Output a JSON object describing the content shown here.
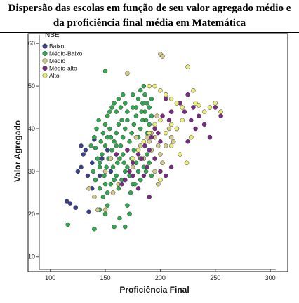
{
  "header": {
    "title_line1": "Dispersão das escolas em função de seu valor agregado médio e",
    "title_line2": "da proficiência final média em Matemática"
  },
  "chart_data": {
    "type": "scatter",
    "title": "Dispersão das escolas em função de seu valor agregado médio e da proficiência final média em Matemática",
    "xlabel": "Proficiência Final",
    "ylabel": "Valor Agregado",
    "xlim": [
      90,
      305
    ],
    "ylim": [
      7,
      62
    ],
    "xticks": [
      100,
      150,
      200,
      250,
      300
    ],
    "yticks": [
      10,
      20,
      30,
      40,
      50,
      60
    ],
    "grid": false,
    "legend": {
      "title": "NSE",
      "position": "top-left"
    },
    "series": [
      {
        "name": "Baixo",
        "color": "#3b3f8f",
        "points": [
          [
            115,
            23
          ],
          [
            118,
            22.5
          ],
          [
            123,
            21.5
          ],
          [
            125,
            30
          ],
          [
            128,
            31
          ],
          [
            130,
            34
          ],
          [
            132,
            35
          ],
          [
            128,
            36
          ],
          [
            135,
            20.5
          ],
          [
            138,
            32
          ],
          [
            140,
            37.5
          ],
          [
            145,
            29
          ],
          [
            147,
            33
          ],
          [
            152,
            35
          ],
          [
            155,
            30
          ],
          [
            134,
            29
          ],
          [
            138,
            26
          ]
        ]
      },
      {
        "name": "Médio-Baixo",
        "color": "#2fa84f",
        "points": [
          [
            116,
            17.5
          ],
          [
            140,
            16.5
          ],
          [
            150,
            20
          ],
          [
            152,
            22
          ],
          [
            158,
            17
          ],
          [
            163,
            19
          ],
          [
            168,
            17
          ],
          [
            170,
            22
          ],
          [
            172,
            20
          ],
          [
            150,
            53.5
          ],
          [
            145,
            21
          ],
          [
            148,
            24
          ],
          [
            152,
            25
          ],
          [
            155,
            27
          ],
          [
            158,
            28
          ],
          [
            160,
            29
          ],
          [
            162,
            26
          ],
          [
            165,
            28
          ],
          [
            168,
            30
          ],
          [
            170,
            31
          ],
          [
            172,
            29
          ],
          [
            175,
            27
          ],
          [
            178,
            32
          ],
          [
            180,
            30
          ],
          [
            182,
            33
          ],
          [
            185,
            31
          ],
          [
            188,
            34
          ],
          [
            190,
            32
          ],
          [
            145,
            32
          ],
          [
            147,
            34
          ],
          [
            150,
            36
          ],
          [
            152,
            38
          ],
          [
            154,
            40
          ],
          [
            156,
            35
          ],
          [
            158,
            37
          ],
          [
            160,
            39
          ],
          [
            162,
            41
          ],
          [
            164,
            36
          ],
          [
            166,
            38
          ],
          [
            168,
            40
          ],
          [
            170,
            42
          ],
          [
            172,
            37
          ],
          [
            174,
            39
          ],
          [
            176,
            41
          ],
          [
            178,
            43
          ],
          [
            180,
            38
          ],
          [
            182,
            40
          ],
          [
            184,
            42
          ],
          [
            186,
            44
          ],
          [
            188,
            39
          ],
          [
            190,
            41
          ],
          [
            192,
            43
          ],
          [
            140,
            38
          ],
          [
            142,
            40
          ],
          [
            144,
            42
          ],
          [
            146,
            37
          ],
          [
            148,
            39
          ],
          [
            150,
            41
          ],
          [
            152,
            43
          ],
          [
            154,
            44
          ],
          [
            156,
            45
          ],
          [
            158,
            46
          ],
          [
            160,
            44
          ],
          [
            162,
            47
          ],
          [
            164,
            45
          ],
          [
            166,
            48
          ],
          [
            168,
            46
          ],
          [
            175,
            48
          ],
          [
            178,
            45
          ],
          [
            180,
            47
          ],
          [
            182,
            49
          ],
          [
            184,
            46
          ],
          [
            186,
            48
          ],
          [
            188,
            46
          ],
          [
            190,
            45
          ],
          [
            192,
            47
          ],
          [
            185,
            50
          ],
          [
            160,
            36
          ],
          [
            163,
            33
          ],
          [
            166,
            34
          ],
          [
            170,
            35
          ],
          [
            174,
            33
          ],
          [
            176,
            35
          ],
          [
            141,
            35.5
          ],
          [
            143,
            33
          ],
          [
            145,
            31
          ],
          [
            149,
            29
          ],
          [
            151,
            31
          ],
          [
            153,
            33
          ],
          [
            157,
            31
          ],
          [
            161,
            32
          ],
          [
            167,
            32
          ],
          [
            173,
            25
          ],
          [
            177,
            27
          ],
          [
            182,
            28
          ],
          [
            187,
            30
          ],
          [
            192,
            29
          ],
          [
            139,
            30
          ],
          [
            141,
            28
          ],
          [
            137,
            36
          ],
          [
            145,
            26
          ],
          [
            150,
            27
          ],
          [
            155,
            38
          ],
          [
            160,
            34
          ],
          [
            165,
            42
          ],
          [
            170,
            44
          ],
          [
            175,
            45
          ],
          [
            183,
            44
          ],
          [
            187,
            42
          ]
        ]
      },
      {
        "name": "Médio",
        "color": "#d2c98a",
        "points": [
          [
            135,
            26
          ],
          [
            140,
            24
          ],
          [
            143,
            21
          ],
          [
            150,
            21
          ],
          [
            157,
            25
          ],
          [
            162,
            27
          ],
          [
            170,
            53
          ],
          [
            175,
            31
          ],
          [
            180,
            35
          ],
          [
            185,
            33
          ],
          [
            190,
            37
          ],
          [
            192,
            35
          ],
          [
            195,
            38
          ],
          [
            198,
            36
          ],
          [
            200,
            34
          ],
          [
            202,
            32
          ],
          [
            205,
            36
          ],
          [
            208,
            40
          ],
          [
            210,
            38
          ],
          [
            200,
            57.5
          ],
          [
            202,
            57
          ],
          [
            205,
            48
          ],
          [
            210,
            44
          ],
          [
            195,
            30
          ],
          [
            198,
            27
          ],
          [
            178,
            38
          ],
          [
            182,
            36
          ],
          [
            188,
            38
          ],
          [
            150,
            30
          ],
          [
            155,
            33
          ],
          [
            192,
            39
          ],
          [
            197,
            43
          ],
          [
            212,
            37
          ]
        ]
      },
      {
        "name": "Médio-alto",
        "color": "#7a2a86",
        "points": [
          [
            165,
            27
          ],
          [
            168,
            28
          ],
          [
            172,
            30
          ],
          [
            175,
            32
          ],
          [
            180,
            34
          ],
          [
            183,
            33
          ],
          [
            186,
            36
          ],
          [
            188,
            31
          ],
          [
            190,
            35
          ],
          [
            192,
            38
          ],
          [
            195,
            40
          ],
          [
            198,
            39
          ],
          [
            200,
            37
          ],
          [
            202,
            43
          ],
          [
            205,
            47
          ],
          [
            208,
            42
          ],
          [
            210,
            44
          ],
          [
            215,
            40
          ],
          [
            218,
            46
          ],
          [
            222,
            44
          ],
          [
            225,
            48
          ],
          [
            228,
            42
          ],
          [
            230,
            45
          ],
          [
            232,
            40
          ],
          [
            235,
            43
          ],
          [
            240,
            41
          ],
          [
            245,
            38
          ],
          [
            250,
            45
          ],
          [
            255,
            43
          ],
          [
            175,
            29
          ],
          [
            185,
            29
          ],
          [
            195,
            33
          ],
          [
            225,
            37
          ],
          [
            210,
            31
          ],
          [
            205,
            29
          ],
          [
            190,
            24
          ],
          [
            180,
            26
          ],
          [
            170,
            35
          ],
          [
            160,
            34
          ],
          [
            200,
            30
          ]
        ]
      },
      {
        "name": "Alto",
        "color": "#ecec78",
        "points": [
          [
            190,
            50
          ],
          [
            195,
            50
          ],
          [
            200,
            49
          ],
          [
            205,
            48
          ],
          [
            210,
            47
          ],
          [
            215,
            46
          ],
          [
            220,
            45
          ],
          [
            225,
            54.5
          ],
          [
            230,
            49
          ],
          [
            232,
            46
          ],
          [
            235,
            45.5
          ],
          [
            240,
            44
          ],
          [
            245,
            45
          ],
          [
            250,
            46
          ],
          [
            255,
            44
          ],
          [
            220,
            42
          ],
          [
            215,
            40
          ],
          [
            210,
            41
          ],
          [
            205,
            39
          ],
          [
            200,
            42
          ],
          [
            195,
            41
          ],
          [
            190,
            39
          ],
          [
            185,
            37
          ],
          [
            180,
            35
          ],
          [
            175,
            33
          ],
          [
            200,
            28
          ],
          [
            210,
            36
          ],
          [
            218,
            34
          ],
          [
            224,
            32
          ],
          [
            228,
            38
          ]
        ]
      }
    ]
  }
}
